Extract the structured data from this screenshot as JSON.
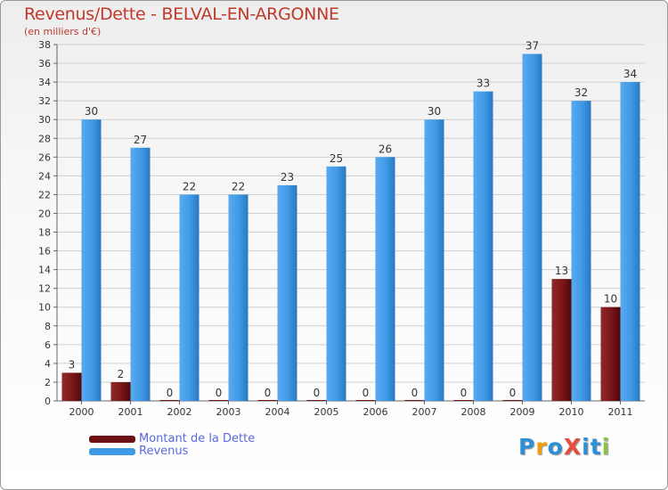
{
  "title": "Revenus/Dette - BELVAL-EN-ARGONNE",
  "subtitle": "(en milliers d'€)",
  "colors": {
    "dette": "#7a1518",
    "revenus": "#3f9ae6",
    "title": "#c0392b",
    "legend_text": "#5a6ae0"
  },
  "logo": {
    "text": "ProXiti",
    "letters": [
      "P",
      "r",
      "o",
      "X",
      "i",
      "t",
      "i"
    ],
    "letter_colors": [
      "#2d8fd6",
      "#f39c12",
      "#2d8fd6",
      "#e74c3c",
      "#2d8fd6",
      "#2d8fd6",
      "#8bc34a"
    ]
  },
  "chart_data": {
    "type": "bar",
    "title": "Revenus/Dette - BELVAL-EN-ARGONNE",
    "ylabel": "(en milliers d'€)",
    "xlabel": "",
    "categories": [
      "2000",
      "2001",
      "2002",
      "2003",
      "2004",
      "2005",
      "2006",
      "2007",
      "2008",
      "2009",
      "2010",
      "2011"
    ],
    "series": [
      {
        "name": "Montant de la Dette",
        "values": [
          3,
          2,
          0,
          0,
          0,
          0,
          0,
          0,
          0,
          0,
          13,
          10
        ]
      },
      {
        "name": "Revenus",
        "values": [
          30,
          27,
          22,
          22,
          23,
          25,
          26,
          30,
          33,
          37,
          32,
          34
        ]
      }
    ],
    "ylim": [
      0,
      38
    ],
    "yticks": [
      0,
      2,
      4,
      6,
      8,
      10,
      12,
      14,
      16,
      18,
      20,
      22,
      24,
      26,
      28,
      30,
      32,
      34,
      36,
      38
    ],
    "grid": true,
    "legend": "bottom-left"
  }
}
